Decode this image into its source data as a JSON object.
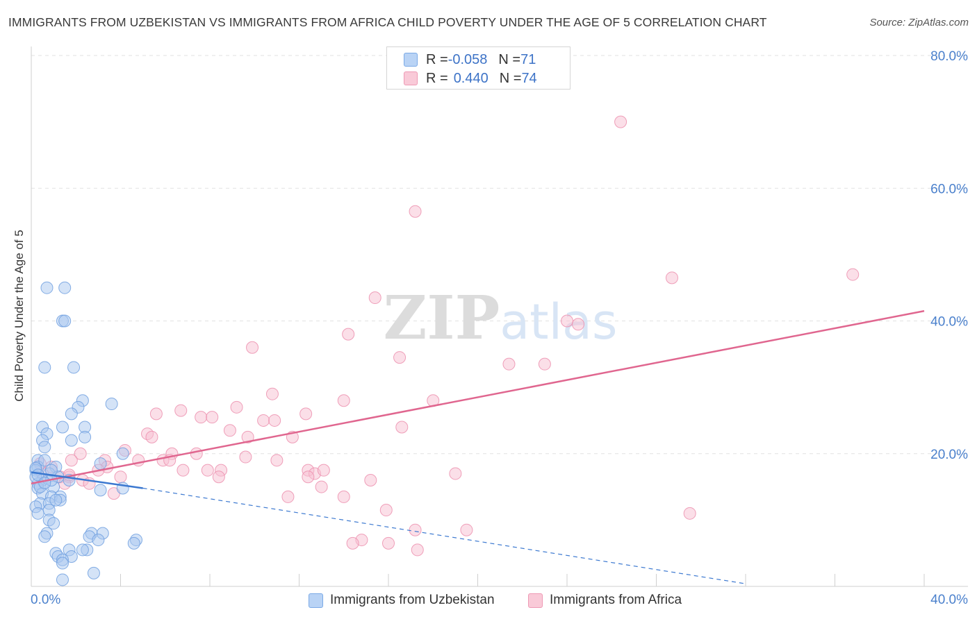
{
  "chart_data": {
    "type": "scatter",
    "title": "IMMIGRANTS FROM UZBEKISTAN VS IMMIGRANTS FROM AFRICA CHILD POVERTY UNDER THE AGE OF 5 CORRELATION CHART",
    "source": "Source: ZipAtlas.com",
    "xlabel": "",
    "ylabel": "Child Poverty Under the Age of 5",
    "xlim": [
      0,
      40
    ],
    "ylim": [
      0,
      80
    ],
    "x_tick_labels": [
      "0.0%",
      "40.0%"
    ],
    "y_tick_labels": [
      "20.0%",
      "40.0%",
      "60.0%",
      "80.0%"
    ],
    "y_ticks": [
      20,
      40,
      60,
      80
    ],
    "watermark": "ZIPatlas",
    "colors": {
      "blue_fill": "#a9c8f0",
      "blue_stroke": "#6f9fdf",
      "blue_line": "#3b78d0",
      "pink_fill": "#f7bfd1",
      "pink_stroke": "#ec8fae",
      "pink_line": "#e0668f",
      "tick_text": "#4a80cc"
    },
    "legend": {
      "rows": [
        {
          "r_label": "R = ",
          "r_value": "-0.058",
          "n_label": "N = ",
          "n_value": "71"
        },
        {
          "r_label": "R = ",
          "r_value": "0.440",
          "n_label": "N = ",
          "n_value": "74"
        }
      ]
    },
    "series": [
      {
        "name": "Immigrants from Uzbekistan",
        "trend": {
          "x0": 0,
          "y0": 17.2,
          "x1": 5.0,
          "y1": 14.8,
          "dash_to_x": 32,
          "dash_to_y": 0.4
        },
        "points": [
          [
            0.7,
            45
          ],
          [
            1.5,
            45
          ],
          [
            1.4,
            40
          ],
          [
            1.5,
            40
          ],
          [
            0.6,
            33
          ],
          [
            1.9,
            33
          ],
          [
            2.3,
            28
          ],
          [
            3.6,
            27.5
          ],
          [
            2.1,
            27
          ],
          [
            1.8,
            26
          ],
          [
            2.4,
            24
          ],
          [
            0.5,
            24
          ],
          [
            1.4,
            24
          ],
          [
            0.7,
            23
          ],
          [
            2.4,
            22.5
          ],
          [
            0.5,
            22
          ],
          [
            1.8,
            22
          ],
          [
            0.6,
            21
          ],
          [
            4.1,
            20
          ],
          [
            0.3,
            19
          ],
          [
            3.1,
            18.5
          ],
          [
            1.1,
            18
          ],
          [
            0.3,
            18
          ],
          [
            0.2,
            17.5
          ],
          [
            0.8,
            17
          ],
          [
            1.2,
            16.5
          ],
          [
            0.5,
            16
          ],
          [
            0.3,
            15.5
          ],
          [
            1.0,
            15
          ],
          [
            0.9,
            16
          ],
          [
            0.3,
            14.8
          ],
          [
            0.5,
            14
          ],
          [
            0.9,
            13.5
          ],
          [
            1.3,
            13.5
          ],
          [
            0.4,
            12.5
          ],
          [
            0.8,
            12.5
          ],
          [
            1.3,
            13
          ],
          [
            0.2,
            12
          ],
          [
            0.8,
            11.5
          ],
          [
            0.3,
            11
          ],
          [
            0.8,
            10
          ],
          [
            1.0,
            9.5
          ],
          [
            0.7,
            8
          ],
          [
            0.6,
            7.5
          ],
          [
            2.7,
            8
          ],
          [
            3.2,
            8
          ],
          [
            2.6,
            7.5
          ],
          [
            3.0,
            7
          ],
          [
            4.7,
            7
          ],
          [
            4.6,
            6.5
          ],
          [
            1.7,
            5.5
          ],
          [
            2.5,
            5.5
          ],
          [
            2.3,
            5.5
          ],
          [
            1.1,
            5
          ],
          [
            1.2,
            4.5
          ],
          [
            1.8,
            4.5
          ],
          [
            1.4,
            4
          ],
          [
            1.4,
            3.5
          ],
          [
            2.8,
            2
          ],
          [
            1.4,
            1
          ],
          [
            0.2,
            16.5
          ],
          [
            0.4,
            15
          ],
          [
            3.1,
            14.5
          ],
          [
            4.1,
            14.8
          ],
          [
            1.7,
            16
          ],
          [
            0.6,
            19
          ],
          [
            0.9,
            17.5
          ],
          [
            1.1,
            13
          ],
          [
            0.2,
            17.8
          ],
          [
            0.3,
            16.8
          ],
          [
            0.6,
            15.6
          ]
        ]
      },
      {
        "name": "Immigrants from Africa",
        "trend": {
          "x0": 0,
          "y0": 15.5,
          "x1": 40,
          "y1": 41.5
        },
        "points": [
          [
            26.4,
            70
          ],
          [
            17.2,
            56.5
          ],
          [
            28.7,
            46.5
          ],
          [
            36.8,
            47
          ],
          [
            15.4,
            43.5
          ],
          [
            24.0,
            40
          ],
          [
            24.5,
            39.5
          ],
          [
            14.2,
            38
          ],
          [
            9.9,
            36
          ],
          [
            16.5,
            34.5
          ],
          [
            21.4,
            33.5
          ],
          [
            23.0,
            33.5
          ],
          [
            10.8,
            29
          ],
          [
            14.0,
            28
          ],
          [
            18.0,
            28
          ],
          [
            9.2,
            27
          ],
          [
            6.7,
            26.5
          ],
          [
            5.6,
            26
          ],
          [
            12.3,
            26
          ],
          [
            7.6,
            25.5
          ],
          [
            8.1,
            25.5
          ],
          [
            10.4,
            25
          ],
          [
            10.9,
            25
          ],
          [
            16.6,
            24
          ],
          [
            8.9,
            23.5
          ],
          [
            5.2,
            23
          ],
          [
            11.7,
            22.5
          ],
          [
            9.7,
            22.5
          ],
          [
            5.4,
            22.5
          ],
          [
            4.2,
            20.5
          ],
          [
            7.4,
            20
          ],
          [
            6.3,
            20
          ],
          [
            2.2,
            20
          ],
          [
            9.6,
            19.5
          ],
          [
            4.8,
            19
          ],
          [
            5.9,
            19
          ],
          [
            6.2,
            19
          ],
          [
            3.3,
            19
          ],
          [
            11.0,
            19
          ],
          [
            1.8,
            19
          ],
          [
            3.4,
            18
          ],
          [
            0.9,
            18
          ],
          [
            3.0,
            17.5
          ],
          [
            6.8,
            17.5
          ],
          [
            7.9,
            17.5
          ],
          [
            8.5,
            17.5
          ],
          [
            12.4,
            17.5
          ],
          [
            12.7,
            17
          ],
          [
            13.1,
            17.5
          ],
          [
            19.0,
            17
          ],
          [
            0.5,
            17
          ],
          [
            1.7,
            16.5
          ],
          [
            1.3,
            16.5
          ],
          [
            4.0,
            16.5
          ],
          [
            8.4,
            16.5
          ],
          [
            12.4,
            16.5
          ],
          [
            15.2,
            16
          ],
          [
            2.3,
            16
          ],
          [
            2.6,
            15.5
          ],
          [
            1.5,
            15.5
          ],
          [
            13.0,
            15
          ],
          [
            3.7,
            14
          ],
          [
            11.5,
            13.5
          ],
          [
            14.0,
            13.5
          ],
          [
            15.9,
            11.5
          ],
          [
            29.5,
            11
          ],
          [
            19.5,
            8.5
          ],
          [
            17.2,
            8.5
          ],
          [
            14.8,
            7
          ],
          [
            14.4,
            6.5
          ],
          [
            16.0,
            6.5
          ],
          [
            17.3,
            5.5
          ],
          [
            1.7,
            16.8
          ],
          [
            0.4,
            18.5
          ]
        ]
      }
    ]
  }
}
